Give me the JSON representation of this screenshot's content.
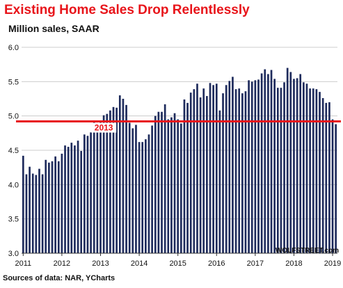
{
  "header": {
    "title": "Existing Home Sales Drop Relentlessly",
    "subtitle": "Million sales, SAAR"
  },
  "footer": {
    "source": "Sources of data: NAR, YCharts",
    "credit": "WOLFSTREET.com"
  },
  "colors": {
    "title": "#e8141a",
    "bar": "#1e2b5c",
    "reference_line": "#e8141a",
    "grid": "#cccccc"
  },
  "chart_data": {
    "type": "bar",
    "title": "Existing Home Sales Drop Relentlessly",
    "subtitle": "Million sales, SAAR",
    "xlabel": "",
    "ylabel": "",
    "ylim": [
      3.0,
      6.0
    ],
    "y_ticks": [
      "3.0",
      "3.5",
      "4.0",
      "4.5",
      "5.0",
      "5.5",
      "6.0"
    ],
    "x_ticks": [
      "2011",
      "2012",
      "2013",
      "2014",
      "2015",
      "2016",
      "2017",
      "2018",
      "2019"
    ],
    "grid": "horizontal",
    "values": [
      4.42,
      4.15,
      4.26,
      4.16,
      4.14,
      4.23,
      4.15,
      4.36,
      4.32,
      4.34,
      4.41,
      4.34,
      4.45,
      4.57,
      4.55,
      4.61,
      4.57,
      4.64,
      4.49,
      4.73,
      4.71,
      4.76,
      4.93,
      4.9,
      4.93,
      5.01,
      5.03,
      5.08,
      5.13,
      5.12,
      5.3,
      5.25,
      5.16,
      4.9,
      4.82,
      4.87,
      4.62,
      4.62,
      4.66,
      4.73,
      4.86,
      5.0,
      5.06,
      5.06,
      5.17,
      4.95,
      4.98,
      5.04,
      4.95,
      4.89,
      5.24,
      5.19,
      5.34,
      5.39,
      5.47,
      5.27,
      5.4,
      5.29,
      5.48,
      5.45,
      5.47,
      5.08,
      5.33,
      5.45,
      5.51,
      5.57,
      5.39,
      5.4,
      5.33,
      5.36,
      5.52,
      5.5,
      5.52,
      5.53,
      5.62,
      5.68,
      5.61,
      5.67,
      5.54,
      5.41,
      5.41,
      5.49,
      5.7,
      5.64,
      5.54,
      5.55,
      5.61,
      5.49,
      5.47,
      5.4,
      5.4,
      5.39,
      5.35,
      5.26,
      5.19,
      5.2,
      4.95,
      4.88
    ],
    "annotations": [
      {
        "text": "2013",
        "y": 4.92,
        "type": "reference_line",
        "color": "#e8141a"
      }
    ]
  }
}
